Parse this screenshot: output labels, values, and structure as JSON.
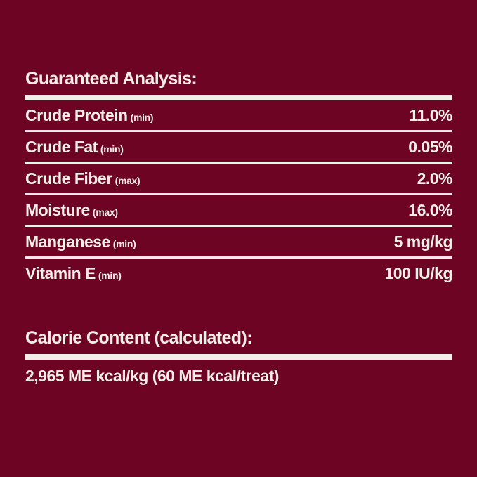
{
  "palette": {
    "background": "#6D0423",
    "foreground": "#F3EFE8"
  },
  "guaranteed_analysis": {
    "title": "Guaranteed Analysis:",
    "rows": [
      {
        "label": "Crude Protein",
        "qualifier": "(min)",
        "value": "11.0%"
      },
      {
        "label": "Crude Fat",
        "qualifier": "(min)",
        "value": "0.05%"
      },
      {
        "label": "Crude Fiber",
        "qualifier": "(max)",
        "value": "2.0%"
      },
      {
        "label": "Moisture",
        "qualifier": "(max)",
        "value": "16.0%"
      },
      {
        "label": "Manganese",
        "qualifier": "(min)",
        "value": "5 mg/kg"
      },
      {
        "label": "Vitamin E",
        "qualifier": "(min)",
        "value": "100 IU/kg"
      }
    ]
  },
  "calorie_content": {
    "title": "Calorie Content (calculated):",
    "value": "2,965 ME kcal/kg (60 ME kcal/treat)"
  }
}
